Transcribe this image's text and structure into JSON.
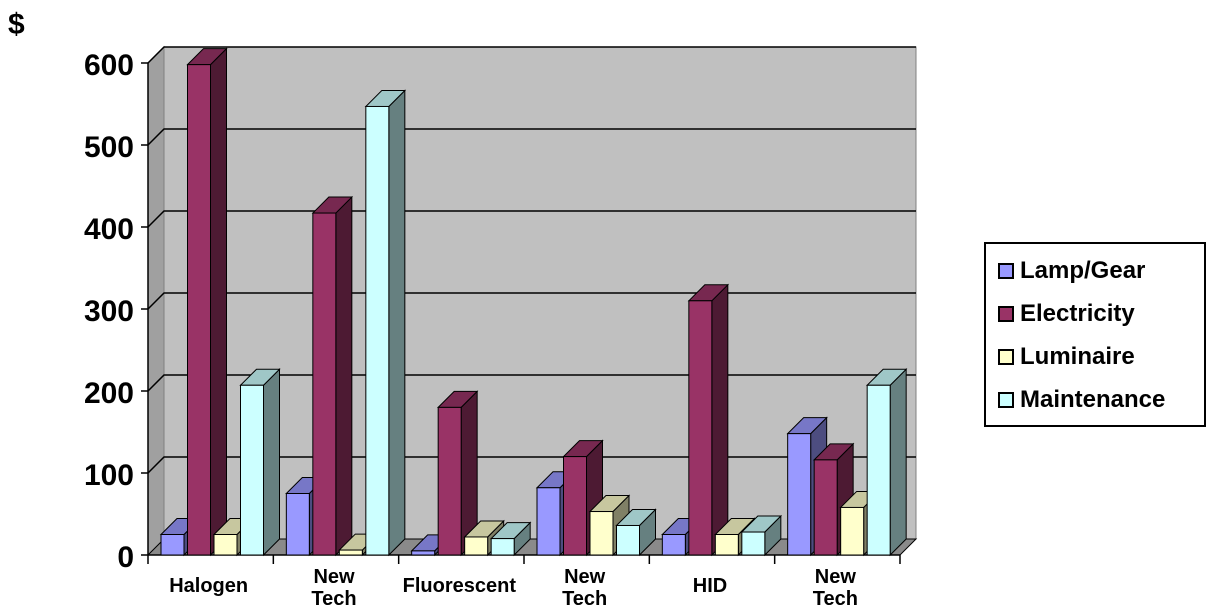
{
  "chart_data": {
    "type": "bar",
    "ylabel": "$",
    "ylim": [
      0,
      600
    ],
    "yticks": [
      "0",
      "100",
      "200",
      "300",
      "400",
      "500",
      "600"
    ],
    "categories": [
      [
        "Halogen"
      ],
      [
        "New",
        "Tech"
      ],
      [
        "Fluorescent"
      ],
      [
        "New",
        "Tech"
      ],
      [
        "HID"
      ],
      [
        "New",
        "Tech"
      ]
    ],
    "series": [
      {
        "name": "Lamp/Gear",
        "color": "#9999ff",
        "values": [
          25,
          75,
          5,
          82,
          25,
          148
        ]
      },
      {
        "name": "Electricity",
        "color": "#993366",
        "values": [
          598,
          417,
          180,
          120,
          310,
          116
        ]
      },
      {
        "name": "Luminaire",
        "color": "#ffffcc",
        "values": [
          25,
          6,
          22,
          53,
          25,
          58
        ]
      },
      {
        "name": "Maintenance",
        "color": "#ccffff",
        "values": [
          207,
          547,
          20,
          36,
          28,
          207
        ]
      }
    ],
    "grid": true,
    "legend": "right"
  }
}
